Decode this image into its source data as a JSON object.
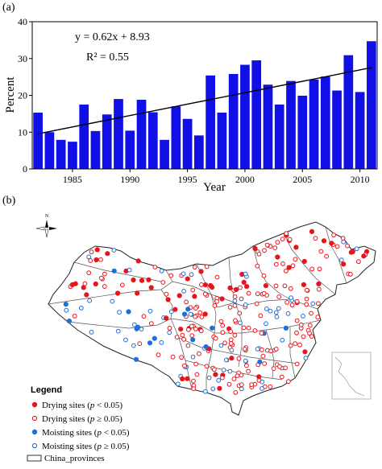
{
  "figure": {
    "panel_a_label": "(a)",
    "panel_b_label": "(b)"
  },
  "chart_data": [
    {
      "type": "bar",
      "x": [
        1982,
        1983,
        1984,
        1985,
        1986,
        1987,
        1988,
        1989,
        1990,
        1991,
        1992,
        1993,
        1994,
        1995,
        1996,
        1997,
        1998,
        1999,
        2000,
        2001,
        2002,
        2003,
        2004,
        2005,
        2006,
        2007,
        2008,
        2009,
        2010,
        2011
      ],
      "values": [
        15.3,
        10.0,
        7.9,
        7.4,
        17.5,
        10.3,
        14.8,
        19.0,
        10.4,
        18.8,
        15.4,
        7.9,
        17.0,
        13.6,
        9.1,
        25.4,
        15.3,
        25.8,
        28.3,
        29.5,
        22.9,
        17.5,
        23.9,
        19.9,
        24.3,
        25.1,
        21.3,
        30.9,
        20.9,
        34.7
      ],
      "series_color": "#0f0fe6",
      "trendline": {
        "slope": 0.62,
        "intercept": 8.93,
        "color": "#000000"
      },
      "annotations": [
        "y = 0.62x + 8.93",
        "R² = 0.55"
      ],
      "xlabel": "Year",
      "ylabel": "Percent",
      "x_ticks": [
        "1985",
        "1990",
        "1995",
        "2000",
        "2005",
        "2010"
      ],
      "y_ticks": [
        "0",
        "10",
        "20",
        "30",
        "40"
      ],
      "ylim": [
        0,
        40
      ],
      "grid": false
    }
  ],
  "map": {
    "north_label": "N",
    "legend": {
      "title": "Legend",
      "items": [
        {
          "prefix": "Drying sites (",
          "stat": "p",
          "suffix": " < 0.05)",
          "marker": "filled",
          "color": "#e8141c"
        },
        {
          "prefix": "Drying sites (",
          "stat": "p",
          "suffix": " ≥ 0.05)",
          "marker": "hollow",
          "color": "#e8141c"
        },
        {
          "prefix": "Moisting sites (",
          "stat": "p",
          "suffix": " < 0.05)",
          "marker": "filled",
          "color": "#1f6fd8"
        },
        {
          "prefix": "Moisting sites (",
          "stat": "p",
          "suffix": " ≥ 0.05)",
          "marker": "hollow",
          "color": "#1f6fd8"
        }
      ],
      "boundary_label": "China_provinces"
    }
  }
}
